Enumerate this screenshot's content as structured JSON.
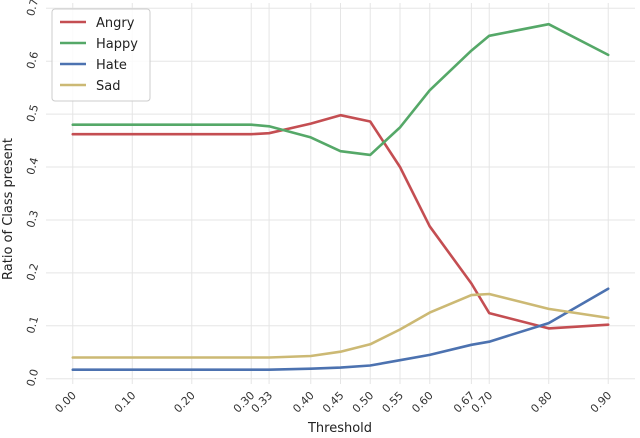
{
  "chart_data": {
    "type": "line",
    "title": "",
    "xlabel": "Threshold",
    "ylabel": "Ratio of Class present",
    "x": [
      0.0,
      0.1,
      0.2,
      0.3,
      0.33,
      0.4,
      0.45,
      0.5,
      0.55,
      0.6,
      0.67,
      0.7,
      0.8,
      0.9
    ],
    "x_tick_labels": [
      "0.00",
      "0.10",
      "0.20",
      "0.30",
      "0.33",
      "0.40",
      "0.45",
      "0.50",
      "0.55",
      "0.60",
      "0.67",
      "0.70",
      "0.80",
      "0.90"
    ],
    "xlim": [
      -0.045,
      0.945
    ],
    "ylim": [
      -0.01,
      0.71
    ],
    "y_ticks": [
      0.0,
      0.1,
      0.2,
      0.3,
      0.4,
      0.5,
      0.6,
      0.7
    ],
    "y_tick_labels": [
      "0.0",
      "0.1",
      "0.2",
      "0.3",
      "0.4",
      "0.5",
      "0.6",
      "0.7"
    ],
    "grid": true,
    "legend_position": "top-left",
    "series": [
      {
        "name": "Angry",
        "color": "#c44e52",
        "values": [
          0.462,
          0.462,
          0.462,
          0.462,
          0.464,
          0.482,
          0.498,
          0.486,
          0.4,
          0.288,
          0.18,
          0.124,
          0.095,
          0.102
        ]
      },
      {
        "name": "Happy",
        "color": "#55a868",
        "values": [
          0.48,
          0.48,
          0.48,
          0.48,
          0.477,
          0.456,
          0.43,
          0.423,
          0.475,
          0.545,
          0.62,
          0.648,
          0.67,
          0.612
        ]
      },
      {
        "name": "Hate",
        "color": "#4c72b0",
        "values": [
          0.017,
          0.017,
          0.017,
          0.017,
          0.017,
          0.019,
          0.021,
          0.025,
          0.035,
          0.045,
          0.064,
          0.07,
          0.105,
          0.17
        ]
      },
      {
        "name": "Sad",
        "color": "#ccb974",
        "values": [
          0.04,
          0.04,
          0.04,
          0.04,
          0.04,
          0.043,
          0.051,
          0.065,
          0.093,
          0.125,
          0.158,
          0.16,
          0.132,
          0.115
        ]
      }
    ]
  }
}
